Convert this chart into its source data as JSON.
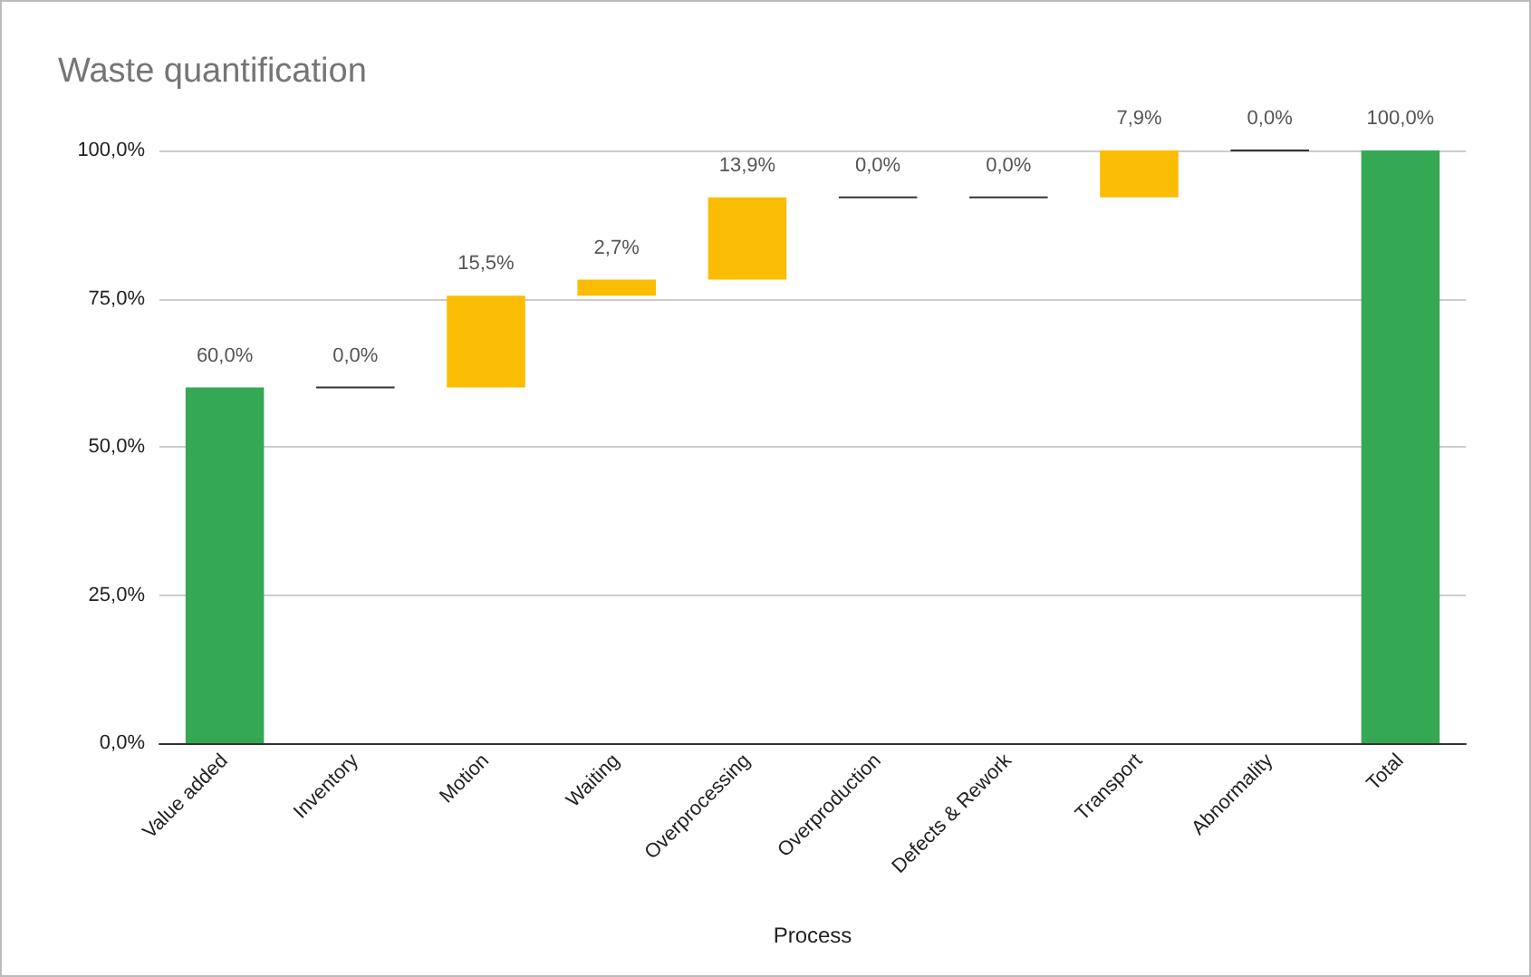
{
  "chart_data": {
    "type": "bar",
    "title": "Waste quantification",
    "xlabel": "Process",
    "categories": [
      "Value added",
      "Inventory",
      "Motion",
      "Waiting",
      "Overprocessing",
      "Overproduction",
      "Defects & Rework",
      "Transport",
      "Abnormality",
      "Total"
    ],
    "values": [
      60.0,
      0.0,
      15.5,
      2.7,
      13.9,
      0.0,
      0.0,
      7.9,
      0.0,
      100.0
    ],
    "base": [
      0,
      60.0,
      60.0,
      75.5,
      78.2,
      92.1,
      92.1,
      92.1,
      100.0,
      0
    ],
    "colors": [
      "#34a853",
      "#333333",
      "#fbbc04",
      "#fbbc04",
      "#fbbc04",
      "#333333",
      "#333333",
      "#fbbc04",
      "#333333",
      "#34a853"
    ],
    "value_labels": [
      "60,0%",
      "0,0%",
      "15,5%",
      "2,7%",
      "13,9%",
      "0,0%",
      "0,0%",
      "7,9%",
      "0,0%",
      "100,0%"
    ],
    "ylim": [
      0,
      100
    ],
    "yticks": [
      {
        "value": 0,
        "label": "0,0%"
      },
      {
        "value": 25,
        "label": "25,0%"
      },
      {
        "value": 50,
        "label": "50,0%"
      },
      {
        "value": 75,
        "label": "75,0%"
      },
      {
        "value": 100,
        "label": "100,0%"
      }
    ],
    "grid": "y"
  }
}
